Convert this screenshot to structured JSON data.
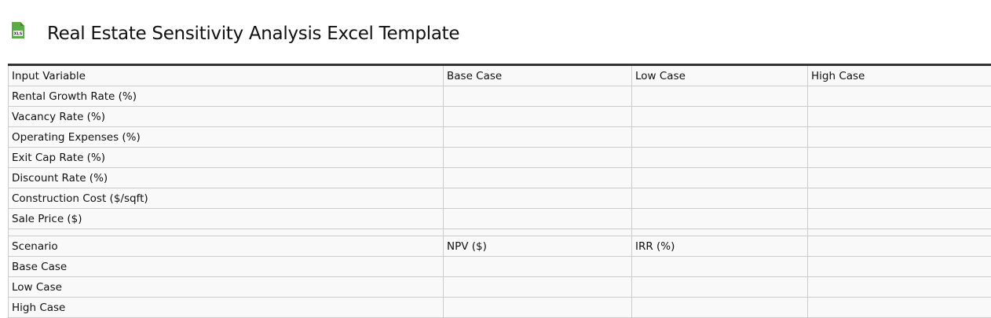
{
  "title": "Real Estate Sensitivity Analysis Excel Template",
  "icon": "xls-file-icon",
  "inputs": {
    "headers": [
      "Input Variable",
      "Base Case",
      "Low Case",
      "High Case"
    ],
    "rows": [
      "Rental Growth Rate (%)",
      "Vacancy Rate (%)",
      "Operating Expenses (%)",
      "Exit Cap Rate (%)",
      "Discount Rate (%)",
      "Construction Cost ($/sqft)",
      "Sale Price ($)"
    ]
  },
  "scenarios": {
    "headers": [
      "Scenario",
      "NPV ($)",
      "IRR (%)",
      ""
    ],
    "rows": [
      "Base Case",
      "Low Case",
      "High Case"
    ]
  }
}
